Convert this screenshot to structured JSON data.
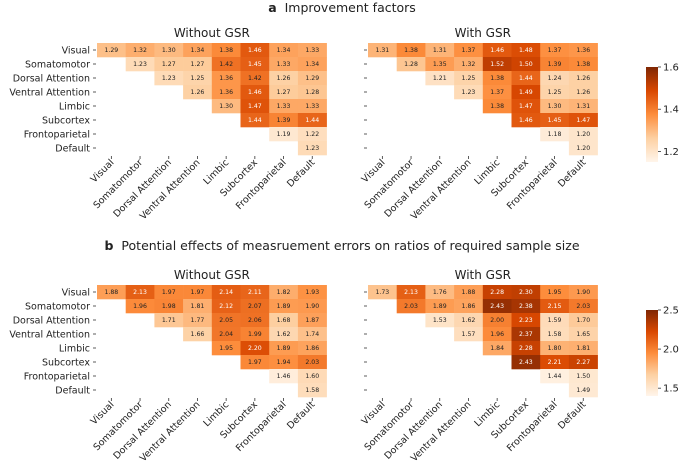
{
  "figure": {
    "panels": [
      {
        "letter": "a",
        "title": "Improvement factors"
      },
      {
        "letter": "b",
        "title": "Potential effects of measruement errors on ratios of required sample size"
      }
    ]
  },
  "colors": {
    "cmap_low": "#fff5eb",
    "cmap_mid1": "#fdd0a2",
    "cmap_mid2": "#fd8d3c",
    "cmap_mid3": "#d94801",
    "cmap_high": "#7f2704",
    "text_dark": "#222222",
    "text_light": "#ffffff"
  },
  "chart_data": [
    {
      "type": "heatmap",
      "panel": "a",
      "title": "Without GSR",
      "row_labels": [
        "Visual",
        "Somatomotor",
        "Dorsal Attention",
        "Ventral Attention",
        "Limbic",
        "Subcortex",
        "Frontoparietal",
        "Default"
      ],
      "col_labels": [
        "Visual",
        "Somatomotor",
        "Dorsal Attention",
        "Ventral Attention",
        "Limbic",
        "Subcortex",
        "Frontoparietal",
        "Default"
      ],
      "vmin": 1.15,
      "vmax": 1.6,
      "values": [
        [
          1.29,
          1.32,
          1.3,
          1.34,
          1.38,
          1.46,
          1.34,
          1.33
        ],
        [
          null,
          1.23,
          1.27,
          1.27,
          1.42,
          1.45,
          1.33,
          1.34
        ],
        [
          null,
          null,
          1.23,
          1.25,
          1.36,
          1.42,
          1.26,
          1.29
        ],
        [
          null,
          null,
          null,
          1.26,
          1.36,
          1.46,
          1.27,
          1.28
        ],
        [
          null,
          null,
          null,
          null,
          1.3,
          1.47,
          1.33,
          1.33
        ],
        [
          null,
          null,
          null,
          null,
          null,
          1.44,
          1.39,
          1.44
        ],
        [
          null,
          null,
          null,
          null,
          null,
          null,
          1.19,
          1.22
        ],
        [
          null,
          null,
          null,
          null,
          null,
          null,
          null,
          1.23
        ]
      ]
    },
    {
      "type": "heatmap",
      "panel": "a",
      "title": "With GSR",
      "row_labels": [
        "Visual",
        "Somatomotor",
        "Dorsal Attention",
        "Ventral Attention",
        "Limbic",
        "Subcortex",
        "Frontoparietal",
        "Default"
      ],
      "col_labels": [
        "Visual",
        "Somatomotor",
        "Dorsal Attention",
        "Ventral Attention",
        "Limbic",
        "Subcortex",
        "Frontoparietal",
        "Default"
      ],
      "vmin": 1.15,
      "vmax": 1.6,
      "values": [
        [
          1.31,
          1.38,
          1.31,
          1.37,
          1.46,
          1.48,
          1.37,
          1.36
        ],
        [
          null,
          1.28,
          1.35,
          1.32,
          1.52,
          1.5,
          1.39,
          1.38
        ],
        [
          null,
          null,
          1.21,
          1.25,
          1.38,
          1.44,
          1.24,
          1.26
        ],
        [
          null,
          null,
          null,
          1.23,
          1.37,
          1.49,
          1.25,
          1.26
        ],
        [
          null,
          null,
          null,
          null,
          1.38,
          1.47,
          1.3,
          1.31
        ],
        [
          null,
          null,
          null,
          null,
          null,
          1.46,
          1.45,
          1.47
        ],
        [
          null,
          null,
          null,
          null,
          null,
          null,
          1.18,
          1.2
        ],
        [
          null,
          null,
          null,
          null,
          null,
          null,
          null,
          1.2
        ]
      ]
    },
    {
      "type": "heatmap",
      "panel": "b",
      "title": "Without GSR",
      "row_labels": [
        "Visual",
        "Somatomotor",
        "Dorsal Attention",
        "Ventral Attention",
        "Limbic",
        "Subcortex",
        "Frontoparietal",
        "Default"
      ],
      "col_labels": [
        "Visual",
        "Somatomotor",
        "Dorsal Attention",
        "Ventral Attention",
        "Limbic",
        "Subcortex",
        "Frontoparietal",
        "Default"
      ],
      "vmin": 1.4,
      "vmax": 2.5,
      "values": [
        [
          1.88,
          2.13,
          1.97,
          1.97,
          2.14,
          2.11,
          1.82,
          1.93
        ],
        [
          null,
          1.96,
          1.98,
          1.81,
          2.12,
          2.07,
          1.89,
          1.9
        ],
        [
          null,
          null,
          1.71,
          1.77,
          2.05,
          2.06,
          1.68,
          1.87
        ],
        [
          null,
          null,
          null,
          1.66,
          2.04,
          1.99,
          1.62,
          1.74
        ],
        [
          null,
          null,
          null,
          null,
          1.95,
          2.2,
          1.89,
          1.86
        ],
        [
          null,
          null,
          null,
          null,
          null,
          1.97,
          1.94,
          2.03
        ],
        [
          null,
          null,
          null,
          null,
          null,
          null,
          1.46,
          1.6
        ],
        [
          null,
          null,
          null,
          null,
          null,
          null,
          null,
          1.58
        ]
      ]
    },
    {
      "type": "heatmap",
      "panel": "b",
      "title": "With GSR",
      "row_labels": [
        "Visual",
        "Somatomotor",
        "Dorsal Attention",
        "Ventral Attention",
        "Limbic",
        "Subcortex",
        "Frontoparietal",
        "Default"
      ],
      "col_labels": [
        "Visual",
        "Somatomotor",
        "Dorsal Attention",
        "Ventral Attention",
        "Limbic",
        "Subcortex",
        "Frontoparietal",
        "Default"
      ],
      "vmin": 1.4,
      "vmax": 2.5,
      "values": [
        [
          1.73,
          2.13,
          1.76,
          1.88,
          2.28,
          2.3,
          1.95,
          1.9
        ],
        [
          null,
          2.03,
          1.89,
          1.86,
          2.43,
          2.38,
          2.15,
          2.03
        ],
        [
          null,
          null,
          1.53,
          1.62,
          2.0,
          2.23,
          1.59,
          1.7
        ],
        [
          null,
          null,
          null,
          1.57,
          1.96,
          2.37,
          1.58,
          1.65
        ],
        [
          null,
          null,
          null,
          null,
          1.84,
          2.28,
          1.8,
          1.81
        ],
        [
          null,
          null,
          null,
          null,
          null,
          2.43,
          2.21,
          2.27
        ],
        [
          null,
          null,
          null,
          null,
          null,
          null,
          1.44,
          1.5
        ],
        [
          null,
          null,
          null,
          null,
          null,
          null,
          null,
          1.49
        ]
      ]
    }
  ],
  "colorbars": [
    {
      "panel": "a",
      "vmin": 1.15,
      "vmax": 1.6,
      "ticks": [
        "1.2",
        "1.4",
        "1.6"
      ],
      "tick_values": [
        1.2,
        1.4,
        1.6
      ]
    },
    {
      "panel": "b",
      "vmin": 1.4,
      "vmax": 2.5,
      "ticks": [
        "1.5",
        "2.0",
        "2.5"
      ],
      "tick_values": [
        1.5,
        2.0,
        2.5
      ]
    }
  ]
}
